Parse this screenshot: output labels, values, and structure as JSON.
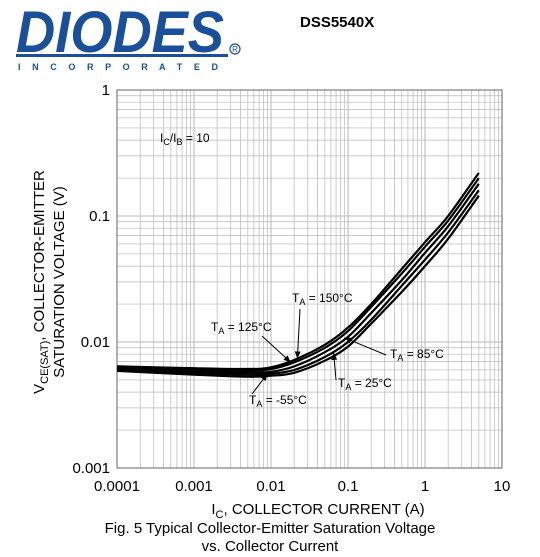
{
  "header": {
    "logo_text": "DIODES",
    "logo_subtext": "I N C O R P O R A T E D",
    "part_number": "DSS5540X"
  },
  "colors": {
    "brand": "#1a4f9c",
    "grid": "#b8b8b8",
    "curve": "#000000"
  },
  "chart_data": {
    "type": "line",
    "title": "",
    "xlabel_main": "I",
    "xlabel_sub": "C",
    "xlabel_rest": ", COLLECTOR CURRENT (A)",
    "ylabel_line1_main": "V",
    "ylabel_line1_sub": "CE(SAT)",
    "ylabel_line1_rest": ", COLLECTOR-EMITTER",
    "ylabel_line2": "SATURATION VOLTAGE (V)",
    "x_scale": "log",
    "y_scale": "log",
    "xlim": [
      0.0001,
      10
    ],
    "ylim": [
      0.001,
      1
    ],
    "x_ticks": [
      "0.0001",
      "0.001",
      "0.01",
      "0.1",
      "1",
      "10"
    ],
    "y_ticks": [
      "0.001",
      "0.01",
      "0.1",
      "1"
    ],
    "grid": true,
    "annotation_condition": {
      "main1": "I",
      "sub1": "C",
      "sep": "/I",
      "sub2": "B",
      "rest": " = 10"
    },
    "series": [
      {
        "name": "150°C",
        "label_main": "T",
        "label_sub": "A",
        "label_rest": " = 150°C",
        "x": [
          0.0001,
          0.001,
          0.005,
          0.01,
          0.02,
          0.05,
          0.1,
          0.2,
          0.5,
          1,
          2,
          5
        ],
        "y": [
          0.0064,
          0.0062,
          0.0061,
          0.0063,
          0.0072,
          0.0095,
          0.013,
          0.02,
          0.038,
          0.062,
          0.1,
          0.22
        ]
      },
      {
        "name": "125°C",
        "label_main": "T",
        "label_sub": "A",
        "label_rest": " = 125°C",
        "x": [
          0.0001,
          0.001,
          0.005,
          0.01,
          0.02,
          0.05,
          0.1,
          0.2,
          0.5,
          1,
          2,
          5
        ],
        "y": [
          0.0062,
          0.006,
          0.0059,
          0.0061,
          0.0069,
          0.009,
          0.0122,
          0.019,
          0.035,
          0.057,
          0.092,
          0.2
        ]
      },
      {
        "name": "85°C",
        "label_main": "T",
        "label_sub": "A",
        "label_rest": " = 85°C",
        "x": [
          0.0001,
          0.001,
          0.005,
          0.01,
          0.02,
          0.05,
          0.1,
          0.2,
          0.5,
          1,
          2,
          5
        ],
        "y": [
          0.0061,
          0.0058,
          0.0057,
          0.0058,
          0.0064,
          0.0083,
          0.011,
          0.017,
          0.031,
          0.051,
          0.083,
          0.18
        ]
      },
      {
        "name": "25°C",
        "label_main": "T",
        "label_sub": "A",
        "label_rest": " = 25°C",
        "x": [
          0.0001,
          0.001,
          0.005,
          0.01,
          0.02,
          0.05,
          0.1,
          0.2,
          0.5,
          1,
          2,
          5
        ],
        "y": [
          0.006,
          0.0057,
          0.0055,
          0.0056,
          0.006,
          0.0076,
          0.01,
          0.015,
          0.028,
          0.045,
          0.074,
          0.16
        ]
      },
      {
        "name": "-55°C",
        "label_main": "T",
        "label_sub": "A",
        "label_rest": " = -55°C",
        "x": [
          0.0001,
          0.001,
          0.005,
          0.01,
          0.02,
          0.05,
          0.1,
          0.2,
          0.5,
          1,
          2,
          5
        ],
        "y": [
          0.0059,
          0.0055,
          0.0053,
          0.0054,
          0.0057,
          0.0071,
          0.0092,
          0.014,
          0.025,
          0.04,
          0.066,
          0.145
        ]
      }
    ]
  },
  "caption": {
    "line1": "Fig. 5 Typical Collector-Emitter Saturation Voltage",
    "line2": "vs. Collector Current"
  }
}
